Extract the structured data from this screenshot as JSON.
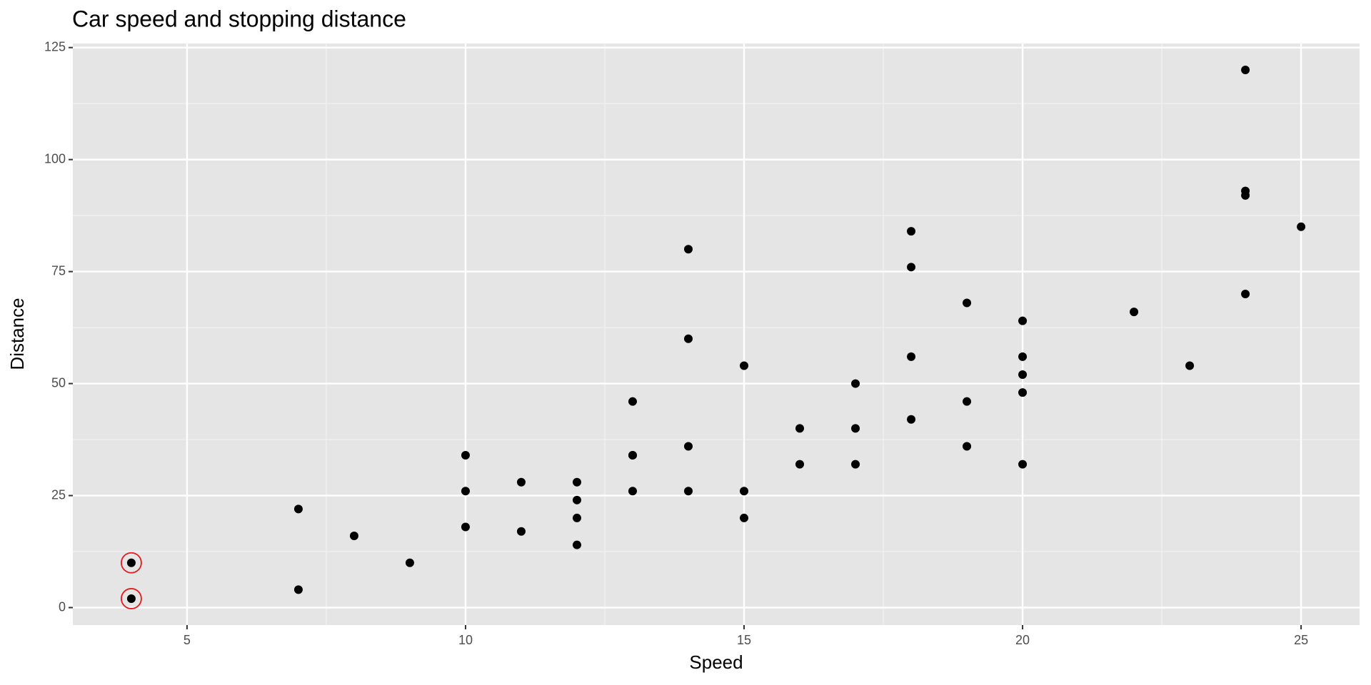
{
  "chart_data": {
    "type": "scatter",
    "title": "Car speed and stopping distance",
    "x_label": "Speed",
    "y_label": "Distance",
    "x": [
      4,
      4,
      7,
      7,
      8,
      9,
      10,
      10,
      10,
      11,
      11,
      12,
      12,
      12,
      12,
      13,
      13,
      13,
      13,
      14,
      14,
      14,
      14,
      15,
      15,
      15,
      16,
      16,
      17,
      17,
      17,
      18,
      18,
      18,
      18,
      19,
      19,
      19,
      20,
      20,
      20,
      20,
      20,
      22,
      23,
      24,
      24,
      24,
      24,
      25
    ],
    "values": [
      2,
      10,
      4,
      22,
      16,
      10,
      18,
      26,
      34,
      17,
      28,
      14,
      20,
      24,
      28,
      26,
      34,
      34,
      46,
      26,
      36,
      60,
      80,
      20,
      26,
      54,
      32,
      40,
      32,
      40,
      50,
      42,
      56,
      76,
      84,
      36,
      46,
      68,
      32,
      48,
      52,
      56,
      64,
      66,
      54,
      70,
      92,
      93,
      120,
      85
    ],
    "color": "#000000",
    "highlighted": [
      0,
      1
    ],
    "highlight_color": "#e41a1c",
    "xlim": [
      2.95,
      26.05
    ],
    "xticks": [
      5,
      10,
      15,
      20,
      25
    ],
    "xminor": [
      7.5,
      12.5,
      17.5,
      22.5
    ],
    "ylim": [
      -3.9,
      125.9
    ],
    "yticks": [
      0,
      25,
      50,
      75,
      100,
      125
    ],
    "yminor": [
      12.5,
      37.5,
      62.5,
      87.5,
      112.5
    ],
    "grid": true
  }
}
